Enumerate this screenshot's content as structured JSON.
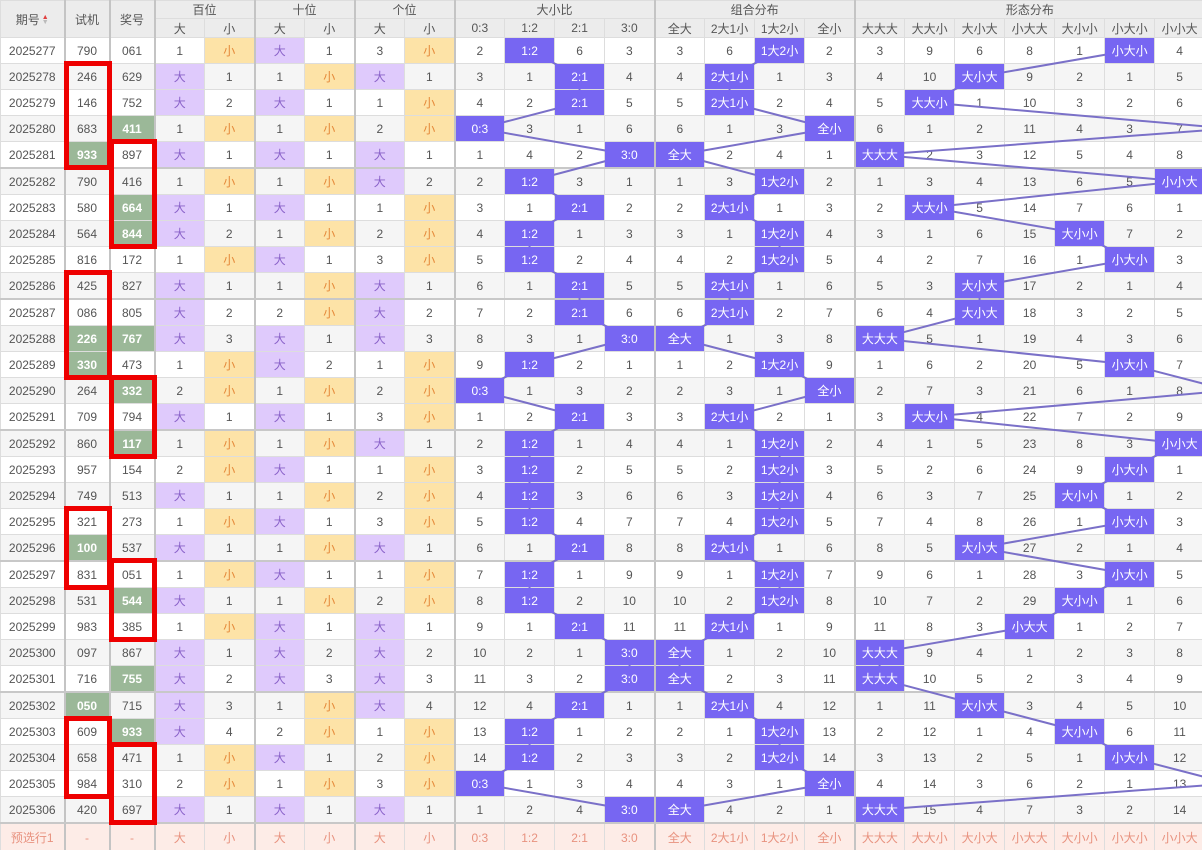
{
  "header": {
    "issue": "期号",
    "shiji": "试机",
    "jianghao": "奖号",
    "groups": [
      "百位",
      "十位",
      "个位",
      "大小比",
      "组合分布",
      "形态分布"
    ],
    "pos_sub": [
      "大",
      "小"
    ],
    "ratio_sub": [
      "0:3",
      "1:2",
      "2:1",
      "3:0"
    ],
    "combo_sub": [
      "全大",
      "2大1小",
      "1大2小",
      "全小"
    ],
    "form_sub": [
      "大大大",
      "大大小",
      "大小大",
      "小大大",
      "大小小",
      "小大小",
      "小小大"
    ]
  },
  "sort": {
    "active": "asc"
  },
  "colors": {
    "hit": "#7766f2",
    "big": "#dfcafc",
    "small": "#fde3a7",
    "match": "#9bb898",
    "annotation": "#ee0000",
    "line": "#7a70c8"
  },
  "rows": [
    {
      "issue": "2025277",
      "shiji": "790",
      "jh": "061",
      "sh_hl": false,
      "jh_hl": false,
      "bai": [
        "1",
        "小"
      ],
      "shi": [
        "大",
        "1"
      ],
      "ge": [
        "3",
        "小"
      ],
      "ratio": [
        "2",
        "1:2",
        "6",
        "3"
      ],
      "combo": [
        "3",
        "6",
        "1大2小",
        "2"
      ],
      "form": [
        "3",
        "9",
        "6",
        "8",
        "1",
        "小大小",
        "4"
      ]
    },
    {
      "issue": "2025278",
      "shiji": "246",
      "jh": "629",
      "sh_hl": false,
      "jh_hl": false,
      "bai": [
        "大",
        "1"
      ],
      "shi": [
        "1",
        "小"
      ],
      "ge": [
        "大",
        "1"
      ],
      "ratio": [
        "3",
        "1",
        "2:1",
        "4"
      ],
      "combo": [
        "4",
        "2大1小",
        "1",
        "3"
      ],
      "form": [
        "4",
        "10",
        "大小大",
        "9",
        "2",
        "1",
        "5"
      ]
    },
    {
      "issue": "2025279",
      "shiji": "146",
      "jh": "752",
      "sh_hl": false,
      "jh_hl": false,
      "bai": [
        "大",
        "2"
      ],
      "shi": [
        "大",
        "1"
      ],
      "ge": [
        "1",
        "小"
      ],
      "ratio": [
        "4",
        "2",
        "2:1",
        "5"
      ],
      "combo": [
        "5",
        "2大1小",
        "2",
        "4"
      ],
      "form": [
        "5",
        "大大小",
        "1",
        "10",
        "3",
        "2",
        "6"
      ]
    },
    {
      "issue": "2025280",
      "shiji": "683",
      "jh": "411",
      "sh_hl": false,
      "jh_hl": true,
      "bai": [
        "1",
        "小"
      ],
      "shi": [
        "1",
        "小"
      ],
      "ge": [
        "2",
        "小"
      ],
      "ratio": [
        "0:3",
        "3",
        "1",
        "6"
      ],
      "combo": [
        "6",
        "1",
        "3",
        "全小"
      ],
      "form": [
        "6",
        "1",
        "2",
        "11",
        "4",
        "3",
        "7"
      ]
    },
    {
      "issue": "2025281",
      "shiji": "933",
      "jh": "897",
      "sh_hl": true,
      "jh_hl": false,
      "bai": [
        "大",
        "1"
      ],
      "shi": [
        "大",
        "1"
      ],
      "ge": [
        "大",
        "1"
      ],
      "ratio": [
        "1",
        "4",
        "2",
        "3:0"
      ],
      "combo": [
        "全大",
        "2",
        "4",
        "1"
      ],
      "form": [
        "大大大",
        "2",
        "3",
        "12",
        "5",
        "4",
        "8"
      ]
    },
    {
      "issue": "2025282",
      "shiji": "790",
      "jh": "416",
      "sh_hl": false,
      "jh_hl": false,
      "bai": [
        "1",
        "小"
      ],
      "shi": [
        "1",
        "小"
      ],
      "ge": [
        "大",
        "2"
      ],
      "ratio": [
        "2",
        "1:2",
        "3",
        "1"
      ],
      "combo": [
        "1",
        "3",
        "1大2小",
        "2"
      ],
      "form": [
        "1",
        "3",
        "4",
        "13",
        "6",
        "5",
        "小小大"
      ]
    },
    {
      "issue": "2025283",
      "shiji": "580",
      "jh": "664",
      "sh_hl": false,
      "jh_hl": true,
      "bai": [
        "大",
        "1"
      ],
      "shi": [
        "大",
        "1"
      ],
      "ge": [
        "1",
        "小"
      ],
      "ratio": [
        "3",
        "1",
        "2:1",
        "2"
      ],
      "combo": [
        "2",
        "2大1小",
        "1",
        "3"
      ],
      "form": [
        "2",
        "大大小",
        "5",
        "14",
        "7",
        "6",
        "1"
      ]
    },
    {
      "issue": "2025284",
      "shiji": "564",
      "jh": "844",
      "sh_hl": false,
      "jh_hl": true,
      "bai": [
        "大",
        "2"
      ],
      "shi": [
        "1",
        "小"
      ],
      "ge": [
        "2",
        "小"
      ],
      "ratio": [
        "4",
        "1:2",
        "1",
        "3"
      ],
      "combo": [
        "3",
        "1",
        "1大2小",
        "4"
      ],
      "form": [
        "3",
        "1",
        "6",
        "15",
        "大小小",
        "7",
        "2"
      ]
    },
    {
      "issue": "2025285",
      "shiji": "816",
      "jh": "172",
      "sh_hl": false,
      "jh_hl": false,
      "bai": [
        "1",
        "小"
      ],
      "shi": [
        "大",
        "1"
      ],
      "ge": [
        "3",
        "小"
      ],
      "ratio": [
        "5",
        "1:2",
        "2",
        "4"
      ],
      "combo": [
        "4",
        "2",
        "1大2小",
        "5"
      ],
      "form": [
        "4",
        "2",
        "7",
        "16",
        "1",
        "小大小",
        "3"
      ]
    },
    {
      "issue": "2025286",
      "shiji": "425",
      "jh": "827",
      "sh_hl": false,
      "jh_hl": false,
      "bai": [
        "大",
        "1"
      ],
      "shi": [
        "1",
        "小"
      ],
      "ge": [
        "大",
        "1"
      ],
      "ratio": [
        "6",
        "1",
        "2:1",
        "5"
      ],
      "combo": [
        "5",
        "2大1小",
        "1",
        "6"
      ],
      "form": [
        "5",
        "3",
        "大小大",
        "17",
        "2",
        "1",
        "4"
      ]
    },
    {
      "issue": "2025287",
      "shiji": "086",
      "jh": "805",
      "sh_hl": false,
      "jh_hl": false,
      "bai": [
        "大",
        "2"
      ],
      "shi": [
        "2",
        "小"
      ],
      "ge": [
        "大",
        "2"
      ],
      "ratio": [
        "7",
        "2",
        "2:1",
        "6"
      ],
      "combo": [
        "6",
        "2大1小",
        "2",
        "7"
      ],
      "form": [
        "6",
        "4",
        "大小大",
        "18",
        "3",
        "2",
        "5"
      ]
    },
    {
      "issue": "2025288",
      "shiji": "226",
      "jh": "767",
      "sh_hl": true,
      "jh_hl": true,
      "bai": [
        "大",
        "3"
      ],
      "shi": [
        "大",
        "1"
      ],
      "ge": [
        "大",
        "3"
      ],
      "ratio": [
        "8",
        "3",
        "1",
        "3:0"
      ],
      "combo": [
        "全大",
        "1",
        "3",
        "8"
      ],
      "form": [
        "大大大",
        "5",
        "1",
        "19",
        "4",
        "3",
        "6"
      ]
    },
    {
      "issue": "2025289",
      "shiji": "330",
      "jh": "473",
      "sh_hl": true,
      "jh_hl": false,
      "bai": [
        "1",
        "小"
      ],
      "shi": [
        "大",
        "2"
      ],
      "ge": [
        "1",
        "小"
      ],
      "ratio": [
        "9",
        "1:2",
        "2",
        "1"
      ],
      "combo": [
        "1",
        "2",
        "1大2小",
        "9"
      ],
      "form": [
        "1",
        "6",
        "2",
        "20",
        "5",
        "小大小",
        "7"
      ]
    },
    {
      "issue": "2025290",
      "shiji": "264",
      "jh": "332",
      "sh_hl": false,
      "jh_hl": true,
      "bai": [
        "2",
        "小"
      ],
      "shi": [
        "1",
        "小"
      ],
      "ge": [
        "2",
        "小"
      ],
      "ratio": [
        "0:3",
        "1",
        "3",
        "2"
      ],
      "combo": [
        "2",
        "3",
        "1",
        "全小"
      ],
      "form": [
        "2",
        "7",
        "3",
        "21",
        "6",
        "1",
        "8"
      ]
    },
    {
      "issue": "2025291",
      "shiji": "709",
      "jh": "794",
      "sh_hl": false,
      "jh_hl": false,
      "bai": [
        "大",
        "1"
      ],
      "shi": [
        "大",
        "1"
      ],
      "ge": [
        "3",
        "小"
      ],
      "ratio": [
        "1",
        "2",
        "2:1",
        "3"
      ],
      "combo": [
        "3",
        "2大1小",
        "2",
        "1"
      ],
      "form": [
        "3",
        "大大小",
        "4",
        "22",
        "7",
        "2",
        "9"
      ]
    },
    {
      "issue": "2025292",
      "shiji": "860",
      "jh": "117",
      "sh_hl": false,
      "jh_hl": true,
      "bai": [
        "1",
        "小"
      ],
      "shi": [
        "1",
        "小"
      ],
      "ge": [
        "大",
        "1"
      ],
      "ratio": [
        "2",
        "1:2",
        "1",
        "4"
      ],
      "combo": [
        "4",
        "1",
        "1大2小",
        "2"
      ],
      "form": [
        "4",
        "1",
        "5",
        "23",
        "8",
        "3",
        "小小大"
      ]
    },
    {
      "issue": "2025293",
      "shiji": "957",
      "jh": "154",
      "sh_hl": false,
      "jh_hl": false,
      "bai": [
        "2",
        "小"
      ],
      "shi": [
        "大",
        "1"
      ],
      "ge": [
        "1",
        "小"
      ],
      "ratio": [
        "3",
        "1:2",
        "2",
        "5"
      ],
      "combo": [
        "5",
        "2",
        "1大2小",
        "3"
      ],
      "form": [
        "5",
        "2",
        "6",
        "24",
        "9",
        "小大小",
        "1"
      ]
    },
    {
      "issue": "2025294",
      "shiji": "749",
      "jh": "513",
      "sh_hl": false,
      "jh_hl": false,
      "bai": [
        "大",
        "1"
      ],
      "shi": [
        "1",
        "小"
      ],
      "ge": [
        "2",
        "小"
      ],
      "ratio": [
        "4",
        "1:2",
        "3",
        "6"
      ],
      "combo": [
        "6",
        "3",
        "1大2小",
        "4"
      ],
      "form": [
        "6",
        "3",
        "7",
        "25",
        "大小小",
        "1",
        "2"
      ]
    },
    {
      "issue": "2025295",
      "shiji": "321",
      "jh": "273",
      "sh_hl": false,
      "jh_hl": false,
      "bai": [
        "1",
        "小"
      ],
      "shi": [
        "大",
        "1"
      ],
      "ge": [
        "3",
        "小"
      ],
      "ratio": [
        "5",
        "1:2",
        "4",
        "7"
      ],
      "combo": [
        "7",
        "4",
        "1大2小",
        "5"
      ],
      "form": [
        "7",
        "4",
        "8",
        "26",
        "1",
        "小大小",
        "3"
      ]
    },
    {
      "issue": "2025296",
      "shiji": "100",
      "jh": "537",
      "sh_hl": true,
      "jh_hl": false,
      "bai": [
        "大",
        "1"
      ],
      "shi": [
        "1",
        "小"
      ],
      "ge": [
        "大",
        "1"
      ],
      "ratio": [
        "6",
        "1",
        "2:1",
        "8"
      ],
      "combo": [
        "8",
        "2大1小",
        "1",
        "6"
      ],
      "form": [
        "8",
        "5",
        "大小大",
        "27",
        "2",
        "1",
        "4"
      ]
    },
    {
      "issue": "2025297",
      "shiji": "831",
      "jh": "051",
      "sh_hl": false,
      "jh_hl": false,
      "bai": [
        "1",
        "小"
      ],
      "shi": [
        "大",
        "1"
      ],
      "ge": [
        "1",
        "小"
      ],
      "ratio": [
        "7",
        "1:2",
        "1",
        "9"
      ],
      "combo": [
        "9",
        "1",
        "1大2小",
        "7"
      ],
      "form": [
        "9",
        "6",
        "1",
        "28",
        "3",
        "小大小",
        "5"
      ]
    },
    {
      "issue": "2025298",
      "shiji": "531",
      "jh": "544",
      "sh_hl": false,
      "jh_hl": true,
      "bai": [
        "大",
        "1"
      ],
      "shi": [
        "1",
        "小"
      ],
      "ge": [
        "2",
        "小"
      ],
      "ratio": [
        "8",
        "1:2",
        "2",
        "10"
      ],
      "combo": [
        "10",
        "2",
        "1大2小",
        "8"
      ],
      "form": [
        "10",
        "7",
        "2",
        "29",
        "大小小",
        "1",
        "6"
      ]
    },
    {
      "issue": "2025299",
      "shiji": "983",
      "jh": "385",
      "sh_hl": false,
      "jh_hl": false,
      "bai": [
        "1",
        "小"
      ],
      "shi": [
        "大",
        "1"
      ],
      "ge": [
        "大",
        "1"
      ],
      "ratio": [
        "9",
        "1",
        "2:1",
        "11"
      ],
      "combo": [
        "11",
        "2大1小",
        "1",
        "9"
      ],
      "form": [
        "11",
        "8",
        "3",
        "小大大",
        "1",
        "2",
        "7"
      ]
    },
    {
      "issue": "2025300",
      "shiji": "097",
      "jh": "867",
      "sh_hl": false,
      "jh_hl": false,
      "bai": [
        "大",
        "1"
      ],
      "shi": [
        "大",
        "2"
      ],
      "ge": [
        "大",
        "2"
      ],
      "ratio": [
        "10",
        "2",
        "1",
        "3:0"
      ],
      "combo": [
        "全大",
        "1",
        "2",
        "10"
      ],
      "form": [
        "大大大",
        "9",
        "4",
        "1",
        "2",
        "3",
        "8"
      ]
    },
    {
      "issue": "2025301",
      "shiji": "716",
      "jh": "755",
      "sh_hl": false,
      "jh_hl": true,
      "bai": [
        "大",
        "2"
      ],
      "shi": [
        "大",
        "3"
      ],
      "ge": [
        "大",
        "3"
      ],
      "ratio": [
        "11",
        "3",
        "2",
        "3:0"
      ],
      "combo": [
        "全大",
        "2",
        "3",
        "11"
      ],
      "form": [
        "大大大",
        "10",
        "5",
        "2",
        "3",
        "4",
        "9"
      ]
    },
    {
      "issue": "2025302",
      "shiji": "050",
      "jh": "715",
      "sh_hl": true,
      "jh_hl": false,
      "bai": [
        "大",
        "3"
      ],
      "shi": [
        "1",
        "小"
      ],
      "ge": [
        "大",
        "4"
      ],
      "ratio": [
        "12",
        "4",
        "2:1",
        "1"
      ],
      "combo": [
        "1",
        "2大1小",
        "4",
        "12"
      ],
      "form": [
        "1",
        "11",
        "大小大",
        "3",
        "4",
        "5",
        "10"
      ]
    },
    {
      "issue": "2025303",
      "shiji": "609",
      "jh": "933",
      "sh_hl": false,
      "jh_hl": true,
      "bai": [
        "大",
        "4"
      ],
      "shi": [
        "2",
        "小"
      ],
      "ge": [
        "1",
        "小"
      ],
      "ratio": [
        "13",
        "1:2",
        "1",
        "2"
      ],
      "combo": [
        "2",
        "1",
        "1大2小",
        "13"
      ],
      "form": [
        "2",
        "12",
        "1",
        "4",
        "大小小",
        "6",
        "11"
      ]
    },
    {
      "issue": "2025304",
      "shiji": "658",
      "jh": "471",
      "sh_hl": false,
      "jh_hl": false,
      "bai": [
        "1",
        "小"
      ],
      "shi": [
        "大",
        "1"
      ],
      "ge": [
        "2",
        "小"
      ],
      "ratio": [
        "14",
        "1:2",
        "2",
        "3"
      ],
      "combo": [
        "3",
        "2",
        "1大2小",
        "14"
      ],
      "form": [
        "3",
        "13",
        "2",
        "5",
        "1",
        "小大小",
        "12"
      ]
    },
    {
      "issue": "2025305",
      "shiji": "984",
      "jh": "310",
      "sh_hl": false,
      "jh_hl": false,
      "bai": [
        "2",
        "小"
      ],
      "shi": [
        "1",
        "小"
      ],
      "ge": [
        "3",
        "小"
      ],
      "ratio": [
        "0:3",
        "1",
        "3",
        "4"
      ],
      "combo": [
        "4",
        "3",
        "1",
        "全小"
      ],
      "form": [
        "4",
        "14",
        "3",
        "6",
        "2",
        "1",
        "13"
      ]
    },
    {
      "issue": "2025306",
      "shiji": "420",
      "jh": "697",
      "sh_hl": false,
      "jh_hl": false,
      "bai": [
        "大",
        "1"
      ],
      "shi": [
        "大",
        "1"
      ],
      "ge": [
        "大",
        "1"
      ],
      "ratio": [
        "1",
        "2",
        "4",
        "3:0"
      ],
      "combo": [
        "全大",
        "4",
        "2",
        "1"
      ],
      "form": [
        "大大大",
        "15",
        "4",
        "7",
        "3",
        "2",
        "14"
      ]
    }
  ],
  "footer": {
    "label": "预选行1",
    "shiji": "-",
    "jh": "-",
    "pos": [
      "大",
      "小",
      "大",
      "小",
      "大",
      "小"
    ],
    "ratio": [
      "0:3",
      "1:2",
      "2:1",
      "3:0"
    ],
    "combo": [
      "全大",
      "2大1小",
      "1大2小",
      "全小"
    ],
    "form": [
      "大大大",
      "大大小",
      "大小大",
      "小大大",
      "大小小",
      "小大小",
      "小小大"
    ]
  }
}
